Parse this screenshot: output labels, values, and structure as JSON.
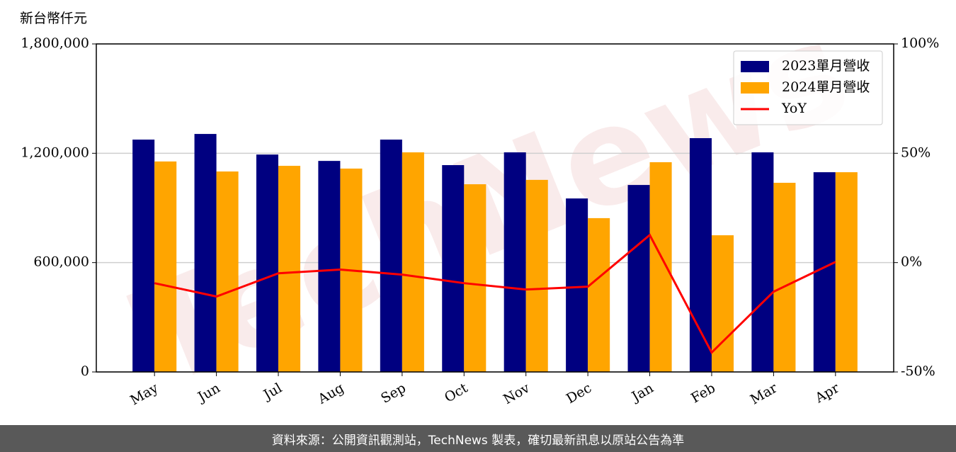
{
  "chart_data": {
    "type": "bar",
    "y_label": "新台幣仟元",
    "watermark": "TechNews",
    "categories": [
      "May",
      "Jun",
      "Jul",
      "Aug",
      "Sep",
      "Oct",
      "Nov",
      "Dec",
      "Jan",
      "Feb",
      "Mar",
      "Apr"
    ],
    "series": [
      {
        "name": "2023單月營收",
        "color": "#000080",
        "values": [
          1275000,
          1306000,
          1193000,
          1158000,
          1275000,
          1135000,
          1205000,
          952000,
          1026000,
          1283000,
          1205000,
          1096000
        ]
      },
      {
        "name": "2024單月營收",
        "color": "#ffa500",
        "values": [
          1155000,
          1100000,
          1131000,
          1116000,
          1205000,
          1030000,
          1054000,
          844000,
          1151000,
          750000,
          1038000,
          1096000
        ]
      },
      {
        "name": "YoY",
        "type": "line",
        "axis": "y2",
        "color": "#ff0000",
        "values": [
          -9.4,
          -15.5,
          -4.9,
          -3.2,
          -5.5,
          -9.4,
          -12.3,
          -11.0,
          12.6,
          -41.1,
          -13.3,
          0.3
        ]
      }
    ],
    "ylim": [
      0,
      1800000
    ],
    "yticks": [
      0,
      {
        "value": 600000,
        "label": "600,000"
      },
      {
        "value": 1200000,
        "label": "1,200,000"
      },
      {
        "value": 1800000,
        "label": "1,800,000"
      }
    ],
    "y2lim": [
      -50,
      100
    ],
    "y2ticks": [
      {
        "value": -50,
        "label": "-50%"
      },
      {
        "value": 0,
        "label": "0%"
      },
      {
        "value": 50,
        "label": "50%"
      },
      {
        "value": 100,
        "label": "100%"
      }
    ],
    "grid": true,
    "legend": "upper right"
  },
  "footer": "資料來源：公開資訊觀測站，TechNews 製表，確切最新訊息以原站公告為準"
}
